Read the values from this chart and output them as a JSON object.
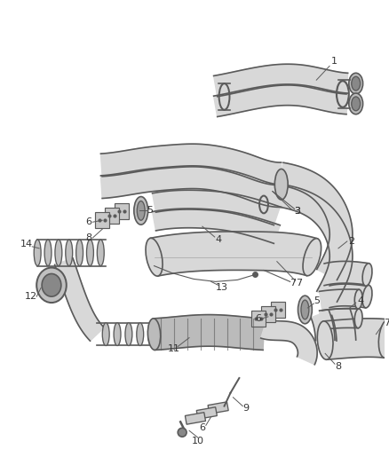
{
  "bg_color": "#ffffff",
  "line_color": "#5a5a5a",
  "fill_color": "#e8e8e8",
  "label_color": "#333333",
  "figsize": [
    4.38,
    5.33
  ],
  "dpi": 100,
  "pipe_lw": 1.2,
  "pipe_fill": "#d8d8d8",
  "pipe_edge": "#555555"
}
